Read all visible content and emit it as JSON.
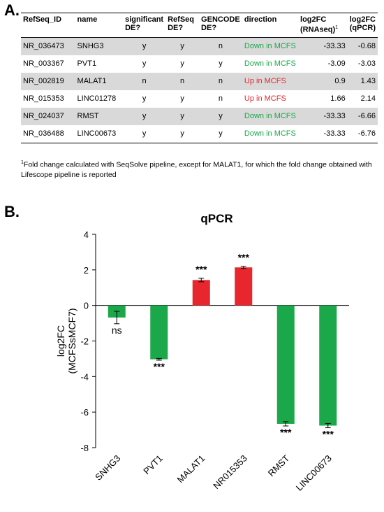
{
  "panel_a": {
    "label": "A.",
    "headers": [
      {
        "text": "RefSeq_ID"
      },
      {
        "text": "name"
      },
      {
        "text": "significant DE?"
      },
      {
        "text": "RefSeq DE?"
      },
      {
        "text": "GENCODE DE?"
      },
      {
        "text": "direction"
      },
      {
        "text": "log2FC (RNAseq)",
        "sup": "1"
      },
      {
        "text": "log2FC (qPCR)"
      }
    ],
    "rows": [
      {
        "refseq_id": "NR_036473",
        "name": "SNHG3",
        "significant": "y",
        "refseq": "y",
        "gencode": "n",
        "direction": "Down in MCFS",
        "fc_rnaseq": "-33.33",
        "fc_qpcr": "-0.68"
      },
      {
        "refseq_id": "NR_003367",
        "name": "PVT1",
        "significant": "y",
        "refseq": "y",
        "gencode": "y",
        "direction": "Down in MCFS",
        "fc_rnaseq": "-3.09",
        "fc_qpcr": "-3.03"
      },
      {
        "refseq_id": "NR_002819",
        "name": "MALAT1",
        "significant": "n",
        "refseq": "n",
        "gencode": "n",
        "direction": "Up in MCFS",
        "fc_rnaseq": "0.9",
        "fc_qpcr": "1.43"
      },
      {
        "refseq_id": "NR_015353",
        "name": "LINC01278",
        "significant": "y",
        "refseq": "y",
        "gencode": "n",
        "direction": "Up in MCFS",
        "fc_rnaseq": "1.66",
        "fc_qpcr": "2.14"
      },
      {
        "refseq_id": "NR_024037",
        "name": "RMST",
        "significant": "y",
        "refseq": "y",
        "gencode": "y",
        "direction": "Down in MCFS",
        "fc_rnaseq": "-33.33",
        "fc_qpcr": "-6.66"
      },
      {
        "refseq_id": "NR_036488",
        "name": "LINC00673",
        "significant": "y",
        "refseq": "y",
        "gencode": "y",
        "direction": "Down in MCFS",
        "fc_rnaseq": "-33.33",
        "fc_qpcr": "-6.76"
      }
    ],
    "footnote_marker": "1",
    "footnote": "Fold change calculated with SeqSolve pipeline, except for MALAT1, for  which the fold change obtained with Lifescope pipeline is reported"
  },
  "panel_b": {
    "label": "B."
  },
  "chart_data": {
    "type": "bar",
    "title": "qPCR",
    "ylabel": "log2FC (MCFSsMCF7)",
    "xlabel": "",
    "categories": [
      "SNHG3",
      "PVT1",
      "MALAT1",
      "NR015353",
      "RMST",
      "LINC00673"
    ],
    "values": [
      -0.68,
      -3.03,
      1.43,
      2.14,
      -6.66,
      -6.76
    ],
    "errors": [
      0.35,
      0.05,
      0.1,
      0.06,
      0.12,
      0.12
    ],
    "significance": [
      "ns",
      "***",
      "***",
      "***",
      "***",
      "***"
    ],
    "colors": [
      "#1aa84a",
      "#1aa84a",
      "#e8262e",
      "#e8262e",
      "#1aa84a",
      "#1aa84a"
    ],
    "ylim": [
      -8,
      4
    ],
    "yticks": [
      4,
      2,
      0,
      -2,
      -4,
      -6,
      -8
    ],
    "grid": false
  }
}
